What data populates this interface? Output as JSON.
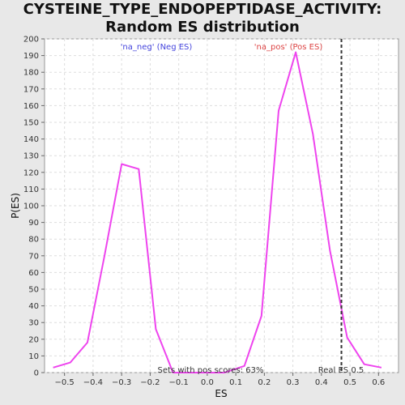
{
  "chart_data": {
    "type": "line",
    "title": "CYSTEINE_TYPE_ENDOPEPTIDASE_ACTIVITY: Random ES distribution",
    "xlabel": "ES",
    "ylabel": "P(ES)",
    "xlim": [
      -0.57,
      0.67
    ],
    "ylim": [
      0,
      200
    ],
    "xticks": [
      -0.5,
      -0.4,
      -0.3,
      -0.2,
      -0.1,
      0.0,
      0.1,
      0.2,
      0.3,
      0.4,
      0.5,
      0.6
    ],
    "xtick_labels": [
      "−0.5",
      "−0.4",
      "−0.3",
      "−0.2",
      "−0.1",
      "0.0",
      "0.1",
      "0.2",
      "0.3",
      "0.4",
      "0.5",
      "0.6"
    ],
    "yticks": [
      0,
      10,
      20,
      30,
      40,
      50,
      60,
      70,
      80,
      90,
      100,
      110,
      120,
      130,
      140,
      150,
      160,
      170,
      180,
      190,
      200
    ],
    "grid": true,
    "line_color": "#ee44ee",
    "series": [
      {
        "x": [
          -0.54,
          -0.48,
          -0.42,
          -0.36,
          -0.3,
          -0.24,
          -0.18,
          -0.12,
          -0.06,
          0.0,
          0.06,
          0.13,
          0.19,
          0.25,
          0.31,
          0.37,
          0.43,
          0.49,
          0.55,
          0.61
        ],
        "values": [
          3,
          6,
          18,
          70,
          125,
          122,
          26,
          0,
          0,
          0,
          0,
          4,
          34,
          157,
          192,
          143,
          73,
          21,
          5,
          3
        ]
      }
    ],
    "real_es": {
      "x": 0.47,
      "label": "Real ES 0.5",
      "color": "#333333"
    },
    "annotations": {
      "neg": {
        "text": "'na_neg' (Neg ES)",
        "color": "#4444dd"
      },
      "pos": {
        "text": "'na_pos' (Pos ES)",
        "color": "#dd4444"
      },
      "pos_scores": {
        "text": "Sets with pos scores: 63%",
        "color": "#333333"
      }
    }
  }
}
